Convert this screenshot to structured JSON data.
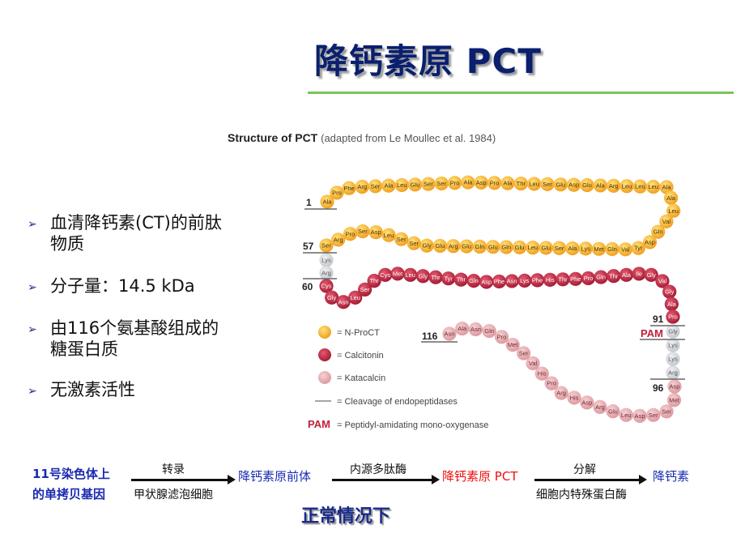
{
  "title": "降钙素原  PCT",
  "figure": {
    "caption_bold": "Structure of PCT",
    "caption_light": "(adapted from Le Moullec et al. 1984)",
    "colors": {
      "n_proct": "#f5a623",
      "calcitonin": "#b8253f",
      "katacalcin": "#e8a8ad",
      "linker": "#d0d3d8",
      "pam": "#c0223a"
    },
    "segments": [
      {
        "type": "n_proct",
        "residues": [
          "Ala",
          "Pro",
          "Phe",
          "Arg",
          "Ser",
          "Ala",
          "Leu",
          "Glu",
          "Ser",
          "Ser",
          "Pro",
          "Ala",
          "Asp",
          "Pro",
          "Ala",
          "Thr",
          "Leu",
          "Ser",
          "Glu",
          "Asp",
          "Glu",
          "Ala",
          "Arg",
          "Leu",
          "Leu",
          "Leu",
          "Ala",
          "Ala",
          "Leu",
          "Val",
          "Gln",
          "Asp",
          "Tyr",
          "Val",
          "Gln",
          "Met",
          "Lys",
          "Ala",
          "Ser",
          "Glu",
          "Leu",
          "Glu",
          "Gln",
          "Glu",
          "Gln",
          "Glu",
          "Arg",
          "Glu",
          "Gly",
          "Ser",
          "Ser",
          "Leu",
          "Asp",
          "Ser",
          "Pro",
          "Arg",
          "Ser"
        ]
      },
      {
        "type": "linker",
        "residues": [
          "Lys",
          "Arg"
        ]
      },
      {
        "type": "calcitonin",
        "residues": [
          "Cys",
          "Gly",
          "Asn",
          "Leu",
          "Ser",
          "Thr",
          "Cys",
          "Met",
          "Leu",
          "Gly",
          "Thr",
          "Tyr",
          "Thr",
          "Gln",
          "Asp",
          "Phe",
          "Asn",
          "Lys",
          "Phe",
          "His",
          "Thr",
          "Phe",
          "Pro",
          "Gln",
          "Thr",
          "Ala",
          "Ile",
          "Gly",
          "Val",
          "Gly",
          "Ala",
          "Pro"
        ]
      },
      {
        "type": "linker",
        "residues": [
          "Gly",
          "Lys",
          "Lys",
          "Arg"
        ]
      },
      {
        "type": "katacalcin",
        "residues": [
          "Asp",
          "Met",
          "Ser",
          "Ser",
          "Asp",
          "Leu",
          "Glu",
          "Arg",
          "Asp",
          "His",
          "Arg",
          "Pro",
          "His",
          "Val",
          "Ser",
          "Met",
          "Pro",
          "Gln",
          "Asn",
          "Ala",
          "Asn"
        ]
      }
    ],
    "position_labels": [
      "1",
      "57",
      "60",
      "91",
      "96",
      "116"
    ],
    "pam_label": "PAM",
    "legend": [
      {
        "type": "n_proct",
        "label": "= N-ProCT"
      },
      {
        "type": "calcitonin",
        "label": "= Calcitonin"
      },
      {
        "type": "katacalcin",
        "label": "= Katacalcin"
      },
      {
        "type": "line",
        "label": "= Cleavage of endopeptidases"
      },
      {
        "type": "pam",
        "key": "PAM",
        "label": "= Peptidyl-amidating mono-oxygenase"
      }
    ]
  },
  "bullets": [
    {
      "line1": "血清降钙素(CT)的前肽",
      "line2": "物质"
    },
    {
      "line1": "分子量：14.5 kDa",
      "line2": ""
    },
    {
      "line1": "由116个氨基酸组成的",
      "line2": "糖蛋白质"
    },
    {
      "line1": "无激素活性",
      "line2": ""
    }
  ],
  "pathway": {
    "source_line1": "11号染色体上",
    "source_line2": "的单拷贝基因",
    "step1_top": "转录",
    "step1_bottom": "甲状腺滤泡细胞",
    "intermediate": "降钙素原前体",
    "step2_top": "内源多肽酶",
    "pct": "降钙素原 PCT",
    "step3_top": "分解",
    "step3_bottom": "细胞内特殊蛋白酶",
    "product": "降钙素",
    "caption": "正常情况下"
  }
}
